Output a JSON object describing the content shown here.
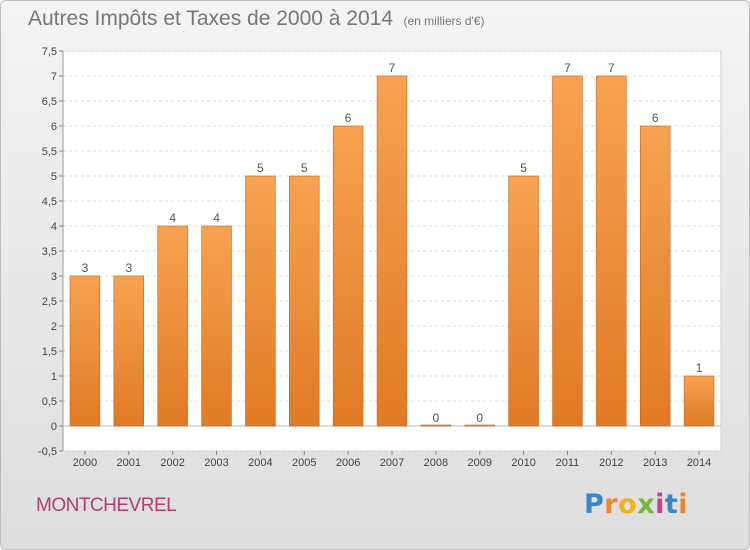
{
  "title": "Autres Impôts et Taxes de 2000 à 2014",
  "unit_note": "(en milliers d'€)",
  "commune": "MONTCHEVREL",
  "logo": {
    "letters": [
      "P",
      "r",
      "o",
      "x",
      "i",
      "t",
      "i"
    ],
    "colors": [
      "#3a87c8",
      "#e8862b",
      "#f0b51e",
      "#7ab740",
      "#cc3f8a",
      "#3a87c8",
      "#e8862b"
    ]
  },
  "colors": {
    "bar_top": "#f7a352",
    "bar_bottom": "#e07a25",
    "bar_stroke": "#c9621a",
    "commune": "#b03e74"
  },
  "chart_data": {
    "type": "bar",
    "title": "Autres Impôts et Taxes de 2000 à 2014",
    "xlabel": "",
    "ylabel": "",
    "categories": [
      "2000",
      "2001",
      "2002",
      "2003",
      "2004",
      "2005",
      "2006",
      "2007",
      "2008",
      "2009",
      "2010",
      "2011",
      "2012",
      "2013",
      "2014"
    ],
    "values": [
      3,
      3,
      4,
      4,
      5,
      5,
      6,
      7,
      0,
      0,
      5,
      7,
      7,
      6,
      1
    ],
    "ylim": [
      -0.5,
      7.5
    ],
    "yticks": [
      "-0,5",
      "0",
      "0,5",
      "1",
      "1,5",
      "2",
      "2,5",
      "3",
      "3,5",
      "4",
      "4,5",
      "5",
      "5,5",
      "6",
      "6,5",
      "7",
      "7,5"
    ],
    "ytick_values": [
      -0.5,
      0,
      0.5,
      1,
      1.5,
      2,
      2.5,
      3,
      3.5,
      4,
      4.5,
      5,
      5.5,
      6,
      6.5,
      7,
      7.5
    ],
    "grid": true,
    "legend": "none"
  }
}
